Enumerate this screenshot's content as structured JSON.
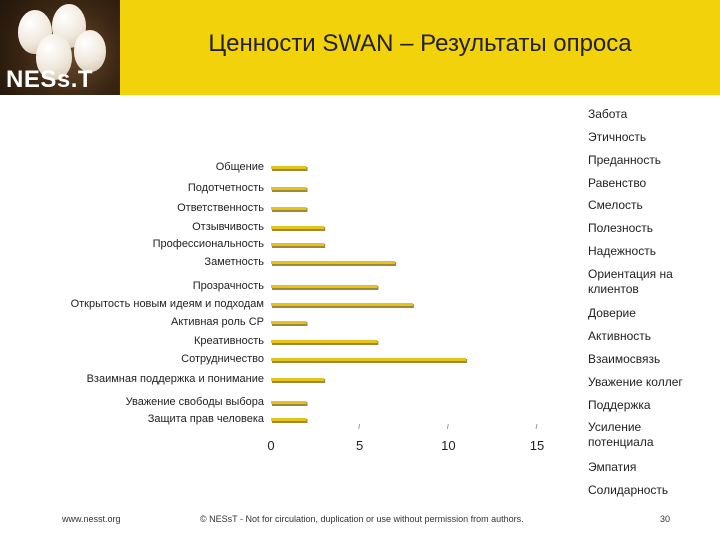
{
  "header": {
    "brand": "NESs.T",
    "title": "Ценности SWAN – Результаты опроса"
  },
  "chart_data": {
    "type": "bar",
    "orientation": "horizontal",
    "title": "Ценности SWAN – Результаты опроса",
    "categories": [
      "Общение",
      "Подотчетность",
      "Ответственность",
      "Отзывчивость",
      "Профессиональность",
      "Заметность",
      "Прозрачность",
      "Открытость новым идеям и подходам",
      "Активная роль СР",
      "Креативность",
      "Сотрудничество",
      "Взаимная поддержка и понимание",
      "Уважение свободы выбора",
      "Защита прав человека"
    ],
    "values": [
      2,
      2,
      2,
      3,
      3,
      7,
      6,
      8,
      2,
      6,
      11,
      3,
      2,
      2
    ],
    "xlim": [
      0,
      15
    ],
    "xticks": [
      "0",
      "5",
      "10",
      "15"
    ],
    "bar_color": "#e8c21c"
  },
  "right_list": [
    "Забота",
    "Этичность",
    "Преданность",
    "Равенство",
    "Смелость",
    "Полезность",
    "Надежность",
    "Ориентация на клиентов",
    "Доверие",
    "Активность",
    "Взаимосвязь",
    "Уважение коллег",
    "Поддержка",
    "Усиление потенциала",
    "Эмпатия",
    "Солидарность"
  ],
  "footer": {
    "url": "www.nesst.org",
    "copyright": "© NESsT - Not for circulation, duplication or use without permission from authors.",
    "page": "30"
  }
}
